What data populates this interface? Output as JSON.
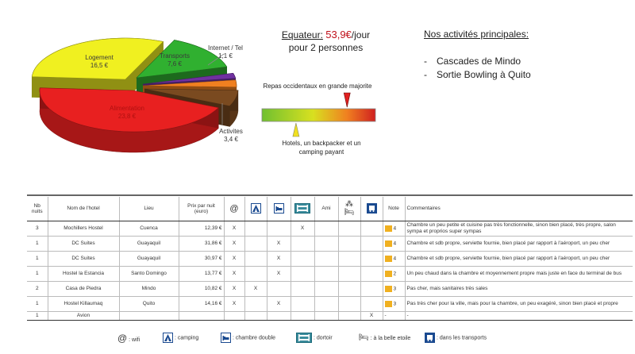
{
  "chart_data": {
    "type": "pie",
    "slices": [
      {
        "label": "Logement",
        "value_label": "16,5 €",
        "value": 16.5,
        "color": "#f0f020"
      },
      {
        "label": "Transports",
        "value_label": "7,6 €",
        "value": 7.6,
        "color": "#30b030"
      },
      {
        "label": "Internet / Tel",
        "value_label": "1,1 €",
        "value": 1.1,
        "color": "#7030a0"
      },
      {
        "label": "",
        "value_label": "",
        "value": 1.5,
        "color": "#f08020"
      },
      {
        "label": "Activites",
        "value_label": "3,4 €",
        "value": 3.4,
        "color": "#7a4a20"
      },
      {
        "label": "Alimentation",
        "value_label": "23,8 €",
        "value": 23.8,
        "color": "#e82020"
      }
    ]
  },
  "header": {
    "country": "Equateur:",
    "amount": "53,9€",
    "per_day": "/jour",
    "line2": "pour 2 personnes"
  },
  "activities": {
    "heading": "Nos activités principales:",
    "items": [
      {
        "dash": "-",
        "text": "Cascades de Mindo"
      },
      {
        "dash": "-",
        "text": "Sortie Bowling à Quito"
      }
    ]
  },
  "gauge": {
    "top_label": "Repas occidentaux en grande majorite",
    "bottom_label_1": "Hotels, un backpacker et un",
    "bottom_label_2": "camping payant",
    "top_marker": 0.75,
    "bottom_marker": 0.3
  },
  "table": {
    "headers": {
      "nights": "Nb nuits",
      "hotel": "Nom de l'hotel",
      "place": "Lieu",
      "price": "Prix par nuit (euro)",
      "wifi": "@",
      "ami": "Ami",
      "note": "Note",
      "comments": "Commentaires"
    },
    "rows": [
      {
        "nights": "3",
        "hotel": "Mochillers Hostel",
        "place": "Cuenca",
        "price": "12,39 €",
        "wifi": "X",
        "camping": "",
        "double": "",
        "dortoir": "X",
        "ami": "",
        "etoile": "",
        "transport": "",
        "note": "4",
        "comment": "Chambre un peu petite et cuisine pas très fonctionnelle, sinon bien placé, très propre, salon sympa et proprios super sympas"
      },
      {
        "nights": "1",
        "hotel": "DC Suites",
        "place": "Guayaquil",
        "price": "31,86 €",
        "wifi": "X",
        "camping": "",
        "double": "X",
        "dortoir": "",
        "ami": "",
        "etoile": "",
        "transport": "",
        "note": "4",
        "comment": "Chambre et sdb propre, serviette fournie, bien placé par rapport à l'aéroport, un peu cher"
      },
      {
        "nights": "1",
        "hotel": "DC Suites",
        "place": "Guayaquil",
        "price": "30,97 €",
        "wifi": "X",
        "camping": "",
        "double": "X",
        "dortoir": "",
        "ami": "",
        "etoile": "",
        "transport": "",
        "note": "4",
        "comment": "Chambre et sdb propre, serviette fournie, bien placé par rapport à l'aéroport, un peu cher"
      },
      {
        "nights": "1",
        "hotel": "Hostel la Estancia",
        "place": "Santo Domingo",
        "price": "13,77 €",
        "wifi": "X",
        "camping": "",
        "double": "X",
        "dortoir": "",
        "ami": "",
        "etoile": "",
        "transport": "",
        "note": "2",
        "comment": "Un peu chaud dans la chambre et moyennement propre mais juste en face du terminal de bus"
      },
      {
        "nights": "2",
        "hotel": "Casa de Piedra",
        "place": "Mindo",
        "price": "10,82 €",
        "wifi": "X",
        "camping": "X",
        "double": "",
        "dortoir": "",
        "ami": "",
        "etoile": "",
        "transport": "",
        "note": "3",
        "comment": "Pas cher, mais sanitaires très sales"
      },
      {
        "nights": "1",
        "hotel": "Hostel Killaumaq",
        "place": "Quito",
        "price": "14,16 €",
        "wifi": "X",
        "camping": "",
        "double": "X",
        "dortoir": "",
        "ami": "",
        "etoile": "",
        "transport": "",
        "note": "3",
        "comment": "Pas très cher pour la ville, mais pour la chambre, un peu exagéré, sinon bien placé et propre"
      },
      {
        "nights": "1",
        "hotel": "Avion",
        "place": "",
        "price": "",
        "wifi": "",
        "camping": "",
        "double": "",
        "dortoir": "",
        "ami": "",
        "etoile": "",
        "transport": "X",
        "note": "-",
        "comment": "-"
      }
    ]
  },
  "legend": {
    "wifi_symbol": "@",
    "wifi": ": wifi",
    "camping": ": camping",
    "double": ": chambre double",
    "dortoir": ": dortoir",
    "etoile": ": à la belle etoile",
    "transport": ": dans les transports"
  },
  "colors": {
    "price_red": "#c0101a",
    "note_arrow": "#f0b020",
    "icon_blue": "#1a4a90",
    "icon_teal": "#3b8c9c"
  }
}
